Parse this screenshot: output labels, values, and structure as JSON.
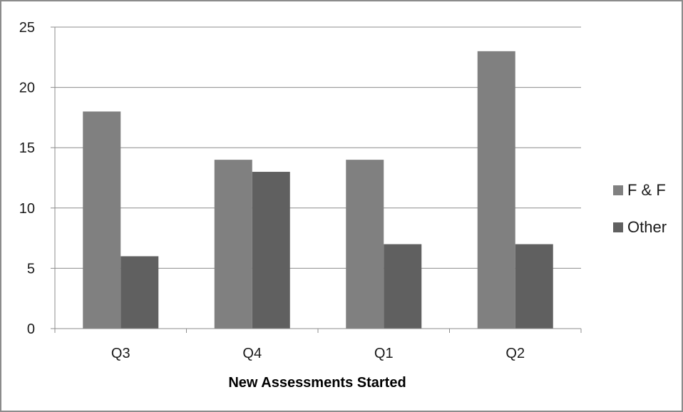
{
  "chart_data": {
    "type": "bar",
    "title": "",
    "xlabel": "New Assessments Started",
    "ylabel": "",
    "categories": [
      "Q3",
      "Q4",
      "Q1",
      "Q2"
    ],
    "series": [
      {
        "name": "F & F",
        "values": [
          18,
          14,
          14,
          23
        ],
        "color": "#808080"
      },
      {
        "name": "Other",
        "values": [
          6,
          13,
          7,
          7
        ],
        "color": "#606060"
      }
    ],
    "ylim": [
      0,
      25
    ],
    "yticks": [
      0,
      5,
      10,
      15,
      20,
      25
    ],
    "grid": true,
    "legend": "right"
  }
}
